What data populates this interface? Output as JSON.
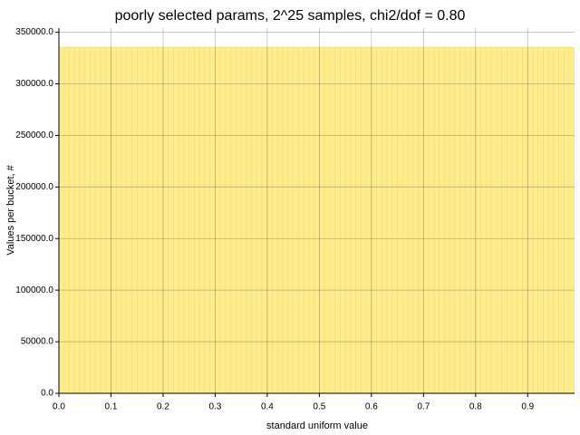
{
  "chart_data": {
    "type": "histogram",
    "title": "poorly selected params, 2^25 samples, chi2/dof = 0.80",
    "x_label": "standard uniform value",
    "y_label": "Values per bucket, #",
    "bins": [
      0,
      0.01,
      0.02,
      0.03,
      0.04,
      0.05,
      0.06,
      0.07,
      0.08,
      0.09,
      0.1,
      0.11,
      0.12,
      0.13,
      0.14,
      0.15,
      0.16,
      0.17,
      0.18,
      0.19,
      0.2,
      0.21,
      0.22,
      0.23,
      0.24,
      0.25,
      0.26,
      0.27,
      0.28,
      0.29,
      0.3,
      0.31,
      0.32,
      0.33,
      0.34,
      0.35,
      0.36,
      0.37,
      0.38,
      0.39,
      0.4,
      0.41,
      0.42,
      0.43,
      0.44,
      0.45,
      0.46,
      0.47,
      0.48,
      0.49,
      0.5,
      0.51,
      0.52,
      0.53,
      0.54,
      0.55,
      0.56,
      0.57,
      0.58,
      0.59,
      0.6,
      0.61,
      0.62,
      0.63,
      0.64,
      0.65,
      0.66,
      0.67,
      0.68,
      0.69,
      0.7,
      0.71,
      0.72,
      0.73,
      0.74,
      0.75,
      0.76,
      0.77,
      0.78,
      0.79,
      0.8,
      0.81,
      0.82,
      0.83,
      0.84,
      0.85,
      0.86,
      0.87,
      0.88,
      0.89,
      0.9,
      0.91,
      0.92,
      0.93,
      0.94,
      0.95,
      0.96,
      0.97,
      0.98,
      0.99,
      1
    ],
    "values": [
      335544,
      335544,
      335544,
      335544,
      335544,
      335544,
      335544,
      335544,
      335544,
      335544,
      335544,
      335544,
      335544,
      335544,
      335544,
      335544,
      335544,
      335544,
      335544,
      335544,
      335544,
      335544,
      335544,
      335544,
      335544,
      335544,
      335544,
      335544,
      335544,
      335544,
      335544,
      335544,
      335544,
      335544,
      335544,
      335544,
      335544,
      335544,
      335544,
      335544,
      335544,
      335544,
      335544,
      335544,
      335544,
      335544,
      335544,
      335544,
      335544,
      335544,
      335544,
      335544,
      335544,
      335544,
      335544,
      335544,
      335544,
      335544,
      335544,
      335544,
      335544,
      335544,
      335544,
      335544,
      335544,
      335544,
      335544,
      335544,
      335544,
      335544,
      335544,
      335544,
      335544,
      335544,
      335544,
      335544,
      335544,
      335544,
      335544,
      335544,
      335544,
      335544,
      335544,
      335544,
      335544,
      335544,
      335544,
      335544,
      335544,
      335544,
      335544,
      335544,
      335544,
      335544,
      335544,
      335544,
      335544,
      335544,
      335544,
      335544
    ],
    "color": "#fdec8e",
    "xlim": [
      0,
      0.99
    ],
    "xticks": [
      {
        "value": 0,
        "label": "0.0"
      },
      0.1,
      0.2,
      0.3,
      0.4,
      0.5,
      0.6,
      0.7,
      0.8,
      0.9
    ],
    "ylim": [
      0,
      354000
    ],
    "yticks": [
      {
        "value": 0,
        "label": "0.0"
      },
      {
        "value": 50000,
        "label": "50000.0"
      },
      {
        "value": 100000,
        "label": "100000.0"
      },
      {
        "value": 150000,
        "label": "150000.0"
      },
      {
        "value": 200000,
        "label": "200000.0"
      },
      {
        "value": 250000,
        "label": "250000.0"
      },
      {
        "value": 300000,
        "label": "300000.0"
      },
      {
        "value": 350000,
        "label": "350000.0"
      }
    ],
    "grid": true
  }
}
